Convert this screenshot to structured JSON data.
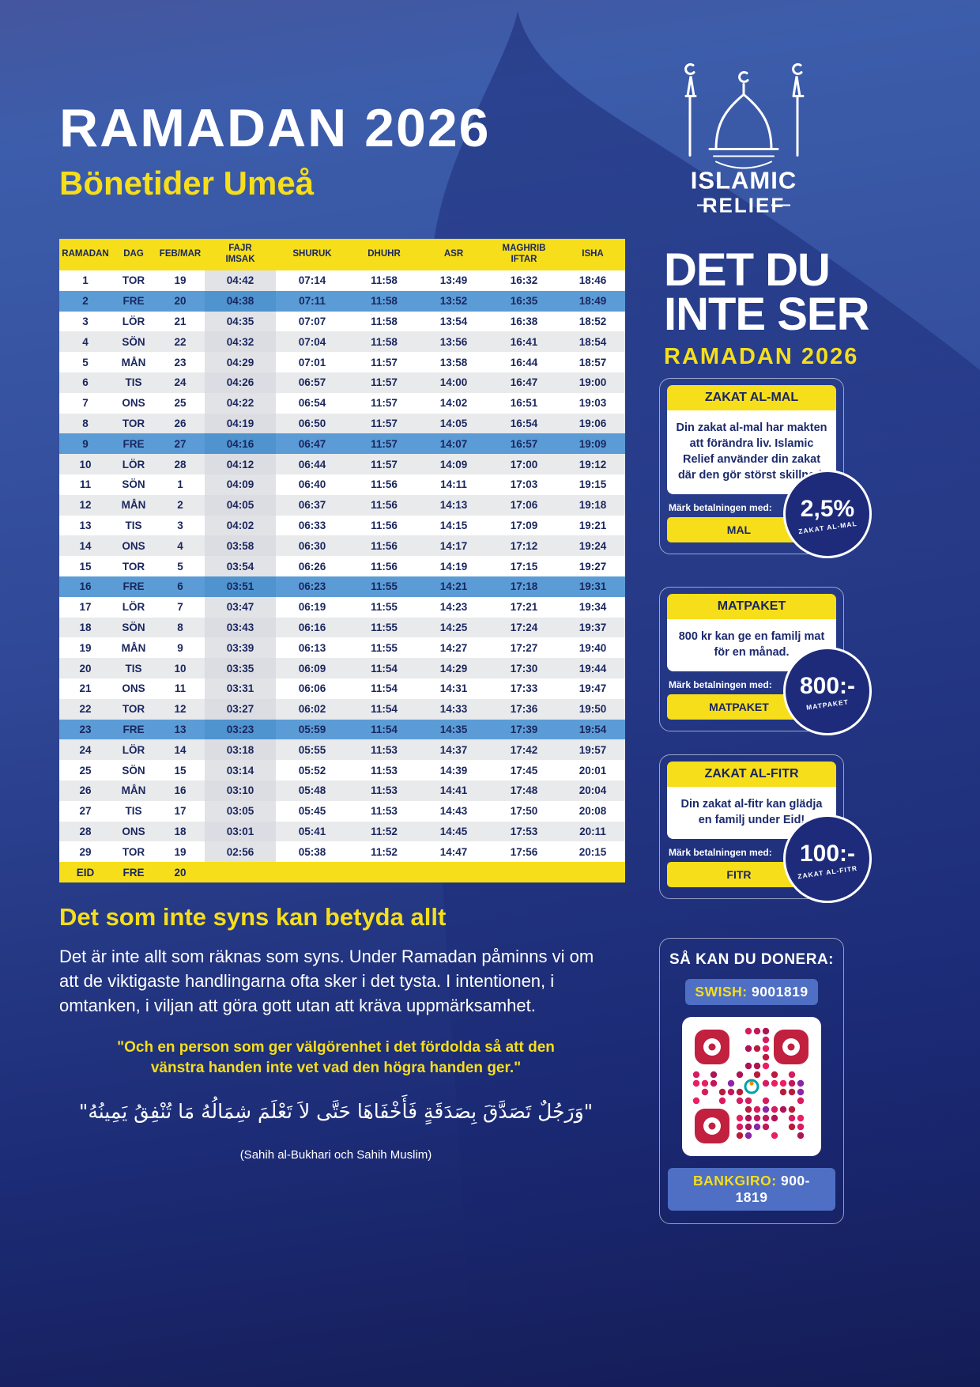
{
  "colors": {
    "accent": "#F6DE1A",
    "navy": "#1A265E",
    "friday": "#5B9CD6",
    "rowalt": "#E9EAEC",
    "badgenavy": "#1D2B7A",
    "swishblue": "#4F6FC5",
    "qrred": "#C2203F"
  },
  "header": {
    "title": "RAMADAN 2026",
    "subtitle": "Bönetider Umeå"
  },
  "logo": {
    "line1": "ISLAMIC",
    "line2": "RELIEF"
  },
  "table": {
    "headers": [
      "RAMADAN",
      "DAG",
      "FEB/MAR",
      "FAJR\nIMSAK",
      "SHURUK",
      "DHUHR",
      "ASR",
      "MAGHRIB\nIFTAR",
      "ISHA"
    ],
    "rows": [
      {
        "cells": [
          "1",
          "TOR",
          "19",
          "04:42",
          "07:14",
          "11:58",
          "13:49",
          "16:32",
          "18:46"
        ]
      },
      {
        "cells": [
          "2",
          "FRE",
          "20",
          "04:38",
          "07:11",
          "11:58",
          "13:52",
          "16:35",
          "18:49"
        ],
        "type": "fre"
      },
      {
        "cells": [
          "3",
          "LÖR",
          "21",
          "04:35",
          "07:07",
          "11:58",
          "13:54",
          "16:38",
          "18:52"
        ]
      },
      {
        "cells": [
          "4",
          "SÖN",
          "22",
          "04:32",
          "07:04",
          "11:58",
          "13:56",
          "16:41",
          "18:54"
        ]
      },
      {
        "cells": [
          "5",
          "MÅN",
          "23",
          "04:29",
          "07:01",
          "11:57",
          "13:58",
          "16:44",
          "18:57"
        ]
      },
      {
        "cells": [
          "6",
          "TIS",
          "24",
          "04:26",
          "06:57",
          "11:57",
          "14:00",
          "16:47",
          "19:00"
        ]
      },
      {
        "cells": [
          "7",
          "ONS",
          "25",
          "04:22",
          "06:54",
          "11:57",
          "14:02",
          "16:51",
          "19:03"
        ]
      },
      {
        "cells": [
          "8",
          "TOR",
          "26",
          "04:19",
          "06:50",
          "11:57",
          "14:05",
          "16:54",
          "19:06"
        ]
      },
      {
        "cells": [
          "9",
          "FRE",
          "27",
          "04:16",
          "06:47",
          "11:57",
          "14:07",
          "16:57",
          "19:09"
        ],
        "type": "fre"
      },
      {
        "cells": [
          "10",
          "LÖR",
          "28",
          "04:12",
          "06:44",
          "11:57",
          "14:09",
          "17:00",
          "19:12"
        ]
      },
      {
        "cells": [
          "11",
          "SÖN",
          "1",
          "04:09",
          "06:40",
          "11:56",
          "14:11",
          "17:03",
          "19:15"
        ]
      },
      {
        "cells": [
          "12",
          "MÅN",
          "2",
          "04:05",
          "06:37",
          "11:56",
          "14:13",
          "17:06",
          "19:18"
        ]
      },
      {
        "cells": [
          "13",
          "TIS",
          "3",
          "04:02",
          "06:33",
          "11:56",
          "14:15",
          "17:09",
          "19:21"
        ]
      },
      {
        "cells": [
          "14",
          "ONS",
          "4",
          "03:58",
          "06:30",
          "11:56",
          "14:17",
          "17:12",
          "19:24"
        ]
      },
      {
        "cells": [
          "15",
          "TOR",
          "5",
          "03:54",
          "06:26",
          "11:56",
          "14:19",
          "17:15",
          "19:27"
        ]
      },
      {
        "cells": [
          "16",
          "FRE",
          "6",
          "03:51",
          "06:23",
          "11:55",
          "14:21",
          "17:18",
          "19:31"
        ],
        "type": "fre"
      },
      {
        "cells": [
          "17",
          "LÖR",
          "7",
          "03:47",
          "06:19",
          "11:55",
          "14:23",
          "17:21",
          "19:34"
        ]
      },
      {
        "cells": [
          "18",
          "SÖN",
          "8",
          "03:43",
          "06:16",
          "11:55",
          "14:25",
          "17:24",
          "19:37"
        ]
      },
      {
        "cells": [
          "19",
          "MÅN",
          "9",
          "03:39",
          "06:13",
          "11:55",
          "14:27",
          "17:27",
          "19:40"
        ]
      },
      {
        "cells": [
          "20",
          "TIS",
          "10",
          "03:35",
          "06:09",
          "11:54",
          "14:29",
          "17:30",
          "19:44"
        ]
      },
      {
        "cells": [
          "21",
          "ONS",
          "11",
          "03:31",
          "06:06",
          "11:54",
          "14:31",
          "17:33",
          "19:47"
        ]
      },
      {
        "cells": [
          "22",
          "TOR",
          "12",
          "03:27",
          "06:02",
          "11:54",
          "14:33",
          "17:36",
          "19:50"
        ]
      },
      {
        "cells": [
          "23",
          "FRE",
          "13",
          "03:23",
          "05:59",
          "11:54",
          "14:35",
          "17:39",
          "19:54"
        ],
        "type": "fre"
      },
      {
        "cells": [
          "24",
          "LÖR",
          "14",
          "03:18",
          "05:55",
          "11:53",
          "14:37",
          "17:42",
          "19:57"
        ]
      },
      {
        "cells": [
          "25",
          "SÖN",
          "15",
          "03:14",
          "05:52",
          "11:53",
          "14:39",
          "17:45",
          "20:01"
        ]
      },
      {
        "cells": [
          "26",
          "MÅN",
          "16",
          "03:10",
          "05:48",
          "11:53",
          "14:41",
          "17:48",
          "20:04"
        ]
      },
      {
        "cells": [
          "27",
          "TIS",
          "17",
          "03:05",
          "05:45",
          "11:53",
          "14:43",
          "17:50",
          "20:08"
        ]
      },
      {
        "cells": [
          "28",
          "ONS",
          "18",
          "03:01",
          "05:41",
          "11:52",
          "14:45",
          "17:53",
          "20:11"
        ]
      },
      {
        "cells": [
          "29",
          "TOR",
          "19",
          "02:56",
          "05:38",
          "11:52",
          "14:47",
          "17:56",
          "20:15"
        ]
      },
      {
        "cells": [
          "EID",
          "FRE",
          "20",
          "",
          "",
          "",
          "",
          "",
          ""
        ],
        "type": "eid"
      }
    ]
  },
  "sidebar": {
    "campaign": {
      "line1": "DET DU",
      "line2": "INTE SER",
      "subtitle": "RAMADAN 2026"
    },
    "cards": [
      {
        "title": "ZAKAT AL-MAL",
        "body": "Din zakat al-mal har makten att förändra liv. Islamic Relief använder din zakat där den gör störst skillnad.",
        "mark_label": "Märk betalningen med:",
        "button": "MAL",
        "badge_value": "2,5%",
        "badge_label": "ZAKAT AL-MAL"
      },
      {
        "title": "MATPAKET",
        "body": "800 kr kan ge en familj mat för en månad.",
        "mark_label": "Märk betalningen med:",
        "button": "MATPAKET",
        "badge_value": "800:-",
        "badge_label": "MATPAKET"
      },
      {
        "title": "ZAKAT AL-FITR",
        "body": "Din zakat al-fitr kan glädja en familj under Eid!",
        "mark_label": "Märk betalningen med:",
        "button": "FITR",
        "badge_value": "100:-",
        "badge_label": "ZAKAT AL-FITR"
      }
    ],
    "donate": {
      "title": "SÅ KAN DU DONERA:",
      "swish_label": "SWISH:",
      "swish_number": "9001819",
      "bankgiro_label": "BANKGIRO:",
      "bankgiro_number": "900-1819"
    }
  },
  "message": {
    "heading": "Det som inte syns kan betyda allt",
    "body": "Det är inte allt som räknas som syns. Under Ramadan påminns vi om att de viktigaste handlingarna ofta sker i det tysta. I intentionen, i omtanken, i viljan att göra gott utan att kräva uppmärksamhet.",
    "quote": "\"Och en person som ger välgörenhet i det fördolda så att den vänstra handen inte vet vad den högra handen ger.\"",
    "arabic": "\"وَرَجُلٌ تَصَدَّقَ بِصَدَقَةٍ فَأَخْفَاهَا حَتَّى لاَ تَعْلَمَ شِمَالُهُ مَا تُنْفِقُ يَمِينُهُ\"",
    "source": "(Sahih al-Bukhari och Sahih Muslim)"
  }
}
